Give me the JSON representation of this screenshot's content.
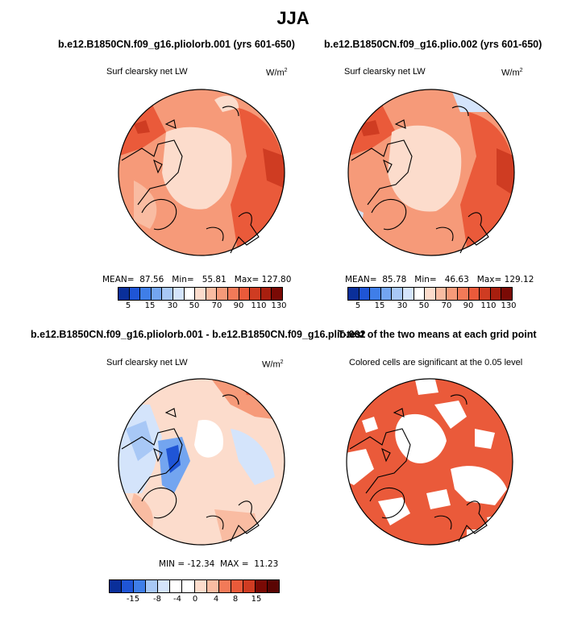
{
  "title": "JJA",
  "colors": {
    "scale_blue_to_red": [
      "#0a2f9a",
      "#1f55d6",
      "#3f7ee8",
      "#73a5f0",
      "#a8c8f6",
      "#d4e4fb",
      "#ffffff",
      "#fcdccc",
      "#f9bca2",
      "#f69a79",
      "#f27a58",
      "#ea5a3a",
      "#cf3c22",
      "#a81f0f",
      "#7a0a05"
    ],
    "coast": "#000000",
    "significant": "#ea5a3a"
  },
  "panels": [
    {
      "title": "b.e12.B1850CN.f09_g16.pliolorb.001 (yrs 601-650)",
      "subtitle": "Surf clearsky net LW",
      "units_base": "W/m",
      "units_exp": "2",
      "stats_text": "MEAN=  87.56   Min=   55.81   Max= 127.80",
      "colorbar_labels": [
        "5",
        "15",
        "30",
        "50",
        "70",
        "90",
        "110",
        "130"
      ]
    },
    {
      "title": "b.e12.B1850CN.f09_g16.plio.002 (yrs 601-650)",
      "subtitle": "Surf clearsky net LW",
      "units_base": "W/m",
      "units_exp": "2",
      "stats_text": "MEAN=  85.78   Min=   46.63   Max= 129.12",
      "colorbar_labels": [
        "5",
        "15",
        "30",
        "50",
        "70",
        "90",
        "110",
        "130"
      ]
    },
    {
      "title": "b.e12.B1850CN.f09_g16.pliolorb.001 - b.e12.B1850CN.f09_g16.plio.002",
      "subtitle": "Surf clearsky net LW",
      "units_base": "W/m",
      "units_exp": "2",
      "stats_text": "MIN = -12.34  MAX =  11.23",
      "colorbar_labels": [
        "-15",
        "-8",
        "-4",
        "0",
        "4",
        "8",
        "15"
      ]
    },
    {
      "title": "T-test of the two means at each grid point",
      "subtitle": "Colored cells are significant at the 0.05 level"
    }
  ],
  "chart_data": [
    {
      "type": "heatmap",
      "projection": "polar stereographic (north)",
      "title": "b.e12.B1850CN.f09_g16.pliolorb.001 (yrs 601-650)",
      "variable": "Surf clearsky net LW",
      "units": "W/m^2",
      "stats": {
        "mean": 87.56,
        "min": 55.81,
        "max": 127.8
      },
      "levels": [
        5,
        10,
        15,
        20,
        30,
        40,
        50,
        60,
        70,
        80,
        90,
        100,
        110,
        120,
        130
      ],
      "colorbar_ticks": [
        5,
        15,
        30,
        50,
        70,
        90,
        110,
        130
      ]
    },
    {
      "type": "heatmap",
      "projection": "polar stereographic (north)",
      "title": "b.e12.B1850CN.f09_g16.plio.002 (yrs 601-650)",
      "variable": "Surf clearsky net LW",
      "units": "W/m^2",
      "stats": {
        "mean": 85.78,
        "min": 46.63,
        "max": 129.12
      },
      "levels": [
        5,
        10,
        15,
        20,
        30,
        40,
        50,
        60,
        70,
        80,
        90,
        100,
        110,
        120,
        130
      ],
      "colorbar_ticks": [
        5,
        15,
        30,
        50,
        70,
        90,
        110,
        130
      ]
    },
    {
      "type": "heatmap",
      "projection": "polar stereographic (north)",
      "title": "b.e12.B1850CN.f09_g16.pliolorb.001 - b.e12.B1850CN.f09_g16.plio.002",
      "variable": "Surf clearsky net LW",
      "units": "W/m^2",
      "stats": {
        "min": -12.34,
        "max": 11.23
      },
      "levels": [
        -15,
        -12,
        -8,
        -6,
        -4,
        -2,
        0,
        2,
        4,
        6,
        8,
        12,
        15
      ],
      "colorbar_ticks": [
        -15,
        -8,
        -4,
        0,
        4,
        8,
        15
      ]
    },
    {
      "type": "heatmap",
      "projection": "polar stereographic (north)",
      "title": "T-test of the two means at each grid point",
      "note": "Colored cells are significant at the 0.05 level",
      "alpha": 0.05
    }
  ]
}
